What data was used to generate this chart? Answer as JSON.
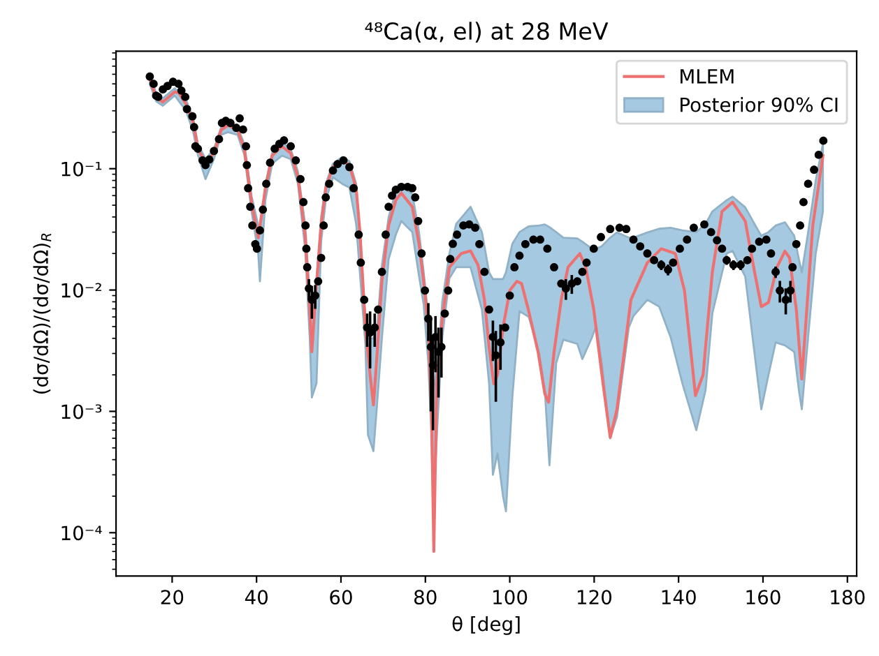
{
  "chart_data": {
    "type": "line",
    "title": "⁴⁸Ca(α, el) at 28 MeV",
    "xlabel": "θ [deg]",
    "ylabel": "(dσ/dΩ)/(dσ/dΩ)$_{R}$",
    "log": "y",
    "xlim": [
      6.7,
      182.2
    ],
    "xticks": [
      20,
      40,
      60,
      80,
      100,
      120,
      140,
      160,
      180
    ],
    "ylim": [
      4.4e-05,
      0.93
    ],
    "yticks": [
      {
        "value": 0.0001,
        "label": "10⁻⁴"
      },
      {
        "value": 0.001,
        "label": "10⁻³"
      },
      {
        "value": 0.01,
        "label": "10⁻²"
      },
      {
        "value": 0.1,
        "label": "10⁻¹"
      }
    ],
    "legend": "top right",
    "series": [
      {
        "name": "MLEM",
        "color": "#ee7171",
        "line_style": "solid",
        "x": [
          14.7,
          16.2,
          17.8,
          20.6,
          21.6,
          23.3,
          25.0,
          26.1,
          27.9,
          29.9,
          31.6,
          33.2,
          35.5,
          37.1,
          38.8,
          40.4,
          42.1,
          43.7,
          46.0,
          48.1,
          49.8,
          51.5,
          52.6,
          53.1,
          54.0,
          55.3,
          56.4,
          58.1,
          60.3,
          62.0,
          63.6,
          64.5,
          65.8,
          66.9,
          67.7,
          68.6,
          69.7,
          71.3,
          73.0,
          74.3,
          76.9,
          78.5,
          79.6,
          80.7,
          81.5,
          82.0,
          82.7,
          84.0,
          85.7,
          88.5,
          90.7,
          92.5,
          94.0,
          95.1,
          96.2,
          97.1,
          98.4,
          100.0,
          101.7,
          102.8,
          104.4,
          106.7,
          108.3,
          109.2,
          110.5,
          112.2,
          113.8,
          116.6,
          118.0,
          119.9,
          122.1,
          123.8,
          125.4,
          128.7,
          132.6,
          135.9,
          139.2,
          141.4,
          144.0,
          145.8,
          148.0,
          150.3,
          152.8,
          155.8,
          158.0,
          159.6,
          161.3,
          163.3,
          165.2,
          166.3,
          167.9,
          169.2,
          171.8,
          174.2
        ],
        "values": [
          0.55,
          0.386,
          0.354,
          0.43,
          0.42,
          0.34,
          0.238,
          0.146,
          0.112,
          0.134,
          0.208,
          0.228,
          0.208,
          0.146,
          0.053,
          0.027,
          0.069,
          0.128,
          0.153,
          0.134,
          0.086,
          0.0286,
          0.0069,
          0.0031,
          0.009,
          0.034,
          0.069,
          0.103,
          0.117,
          0.107,
          0.069,
          0.03,
          0.0049,
          0.002,
          0.00113,
          0.0031,
          0.0118,
          0.034,
          0.055,
          0.063,
          0.0485,
          0.024,
          0.0118,
          0.0049,
          0.00084,
          7e-05,
          0.0017,
          0.0058,
          0.0154,
          0.02,
          0.021,
          0.016,
          0.0083,
          0.0034,
          0.00169,
          0.002,
          0.0049,
          0.0099,
          0.0118,
          0.0113,
          0.0069,
          0.0031,
          0.0014,
          0.00119,
          0.0031,
          0.0083,
          0.0154,
          0.02,
          0.0154,
          0.0069,
          0.00169,
          0.00061,
          0.00104,
          0.0083,
          0.0168,
          0.0219,
          0.02,
          0.0099,
          0.00135,
          0.002,
          0.0141,
          0.0444,
          0.053,
          0.037,
          0.0141,
          0.0073,
          0.0079,
          0.0154,
          0.0209,
          0.0184,
          0.0069,
          0.00185,
          0.034,
          0.128
        ]
      },
      {
        "name": "Posterior 90% CI",
        "type": "area",
        "color": "#a5c9e1",
        "x": [
          14.7,
          16.2,
          17.8,
          20.6,
          23.3,
          25.0,
          26.1,
          27.9,
          29.9,
          31.6,
          33.2,
          35.5,
          37.1,
          38.8,
          40.4,
          40.8,
          42.1,
          43.7,
          46.0,
          48.1,
          49.8,
          51.5,
          52.6,
          53.1,
          54.2,
          55.3,
          56.4,
          58.1,
          60.3,
          62.0,
          63.6,
          65.8,
          66.4,
          67.7,
          68.6,
          69.7,
          71.3,
          73.0,
          74.3,
          76.9,
          78.5,
          79.6,
          80.7,
          81.3,
          81.9,
          82.9,
          84.0,
          85.7,
          87.3,
          90.7,
          93.4,
          95.1,
          96.0,
          97.1,
          98.4,
          99.1,
          100.6,
          102.3,
          104.5,
          107.0,
          108.3,
          109.4,
          111.0,
          112.7,
          116.0,
          117.2,
          119.4,
          120.5,
          121.8,
          123.8,
          125.4,
          128.2,
          129.3,
          132.6,
          135.4,
          138.1,
          140.9,
          144.2,
          146.4,
          148.0,
          151.4,
          152.8,
          155.8,
          158.0,
          159.6,
          161.3,
          163.0,
          165.2,
          167.4,
          168.5,
          169.2,
          170.7,
          172.5,
          174.2
        ],
        "values": [
          null,
          null,
          null,
          null,
          null,
          null,
          null,
          null,
          null,
          null,
          null,
          null,
          null,
          null,
          null,
          null,
          null,
          null,
          null,
          null,
          null,
          null,
          null,
          null,
          null,
          null,
          null,
          null,
          null,
          null,
          null,
          null,
          null,
          null,
          null,
          null,
          null,
          null,
          null,
          null,
          null,
          null,
          null,
          null,
          null,
          null,
          null,
          null,
          null,
          null,
          null,
          null,
          null,
          null,
          null,
          null,
          null,
          null,
          null,
          null,
          null,
          null,
          null,
          null,
          null,
          null,
          null,
          null,
          null,
          null,
          null,
          null,
          null,
          null,
          null,
          null,
          null,
          null,
          null,
          null,
          null,
          null,
          null,
          null,
          null,
          null,
          null,
          null,
          null,
          null,
          null,
          null,
          null,
          null
        ],
        "lower": [
          0.5,
          0.36,
          0.33,
          0.4,
          0.3,
          0.2,
          0.13,
          0.082,
          0.12,
          0.19,
          0.2,
          0.19,
          0.13,
          0.045,
          0.02,
          0.0118,
          0.055,
          0.11,
          0.128,
          0.12,
          0.075,
          0.022,
          0.004,
          0.0013,
          0.0017,
          0.025,
          0.055,
          0.085,
          0.075,
          0.07,
          0.035,
          0.0035,
          0.00064,
          0.00047,
          0.0012,
          0.004,
          0.018,
          0.0286,
          0.037,
          0.03,
          0.013,
          0.0076,
          0.0025,
          0.00084,
          0.000156,
          0.00084,
          0.0041,
          0.0125,
          0.0154,
          0.0154,
          0.0069,
          0.0017,
          0.0003,
          0.00045,
          0.0002,
          0.00015,
          0.0013,
          0.0067,
          0.006,
          0.003,
          0.0015,
          0.00036,
          0.0025,
          0.0039,
          0.0036,
          0.0027,
          0.004,
          0.0051,
          0.0025,
          0.0006,
          0.0009,
          0.0049,
          0.0061,
          0.0083,
          0.0073,
          0.0041,
          0.0017,
          0.0007,
          0.0015,
          0.0064,
          0.02,
          0.021,
          0.0129,
          0.003,
          0.00104,
          0.002,
          0.0037,
          0.0035,
          0.0031,
          0.0015,
          0.00104,
          0.0041,
          0.02,
          0.0444
        ],
        "upper": [
          0.6,
          0.42,
          0.38,
          0.46,
          0.37,
          0.26,
          0.16,
          0.12,
          0.145,
          0.22,
          0.245,
          0.22,
          0.16,
          0.06,
          0.034,
          0.03,
          0.075,
          0.135,
          0.165,
          0.145,
          0.095,
          0.035,
          0.009,
          0.006,
          0.012,
          0.04,
          0.075,
          0.11,
          0.125,
          0.115,
          0.075,
          0.006,
          0.004,
          0.004,
          0.005,
          0.016,
          0.04,
          0.065,
          0.071,
          0.062,
          0.03,
          0.014,
          0.006,
          0.0035,
          0.0015,
          0.0025,
          0.008,
          0.02,
          0.035,
          0.0485,
          0.03,
          0.014,
          0.0123,
          0.0123,
          0.0123,
          0.014,
          0.024,
          0.03,
          0.0335,
          0.034,
          0.0347,
          0.033,
          0.03,
          0.027,
          0.0266,
          0.025,
          0.022,
          0.0219,
          0.023,
          0.027,
          0.0298,
          0.027,
          0.027,
          0.0298,
          0.032,
          0.0326,
          0.031,
          0.03,
          0.035,
          0.0444,
          0.055,
          0.0588,
          0.048,
          0.035,
          0.028,
          0.03,
          0.034,
          0.0362,
          0.028,
          0.018,
          0.014,
          0.03,
          0.08,
          0.16
        ]
      },
      {
        "type": "scatter",
        "color": "#000000",
        "marker": "circle",
        "x": [
          14.7,
          15.6,
          16.2,
          16.7,
          17.8,
          18.9,
          20.2,
          21.5,
          22.2,
          23.1,
          23.5,
          24.8,
          25.2,
          25.5,
          26.1,
          27.2,
          27.9,
          28.8,
          29.9,
          31.1,
          31.8,
          32.7,
          33.8,
          35.2,
          36.0,
          36.8,
          37.5,
          37.7,
          38.0,
          38.5,
          39.0,
          39.7,
          40.1,
          40.8,
          41.5,
          42.3,
          43.2,
          44.3,
          45.4,
          46.5,
          48.1,
          49.3,
          50.4,
          51.1,
          51.6,
          51.8,
          52.0,
          52.4,
          53.1,
          53.9,
          54.6,
          55.3,
          55.9,
          56.4,
          57.2,
          58.1,
          59.2,
          60.6,
          62.0,
          63.0,
          64.2,
          64.7,
          65.5,
          66.2,
          66.9,
          68.0,
          68.8,
          69.7,
          70.6,
          71.3,
          72.1,
          73.0,
          74.3,
          75.8,
          76.9,
          77.6,
          78.3,
          79.1,
          79.9,
          80.7,
          81.3,
          81.8,
          82.4,
          83.1,
          83.8,
          84.6,
          85.4,
          85.9,
          86.5,
          87.5,
          89.0,
          90.4,
          91.8,
          92.8,
          94.0,
          95.1,
          96.0,
          96.7,
          97.8,
          98.9,
          100.0,
          101.1,
          102.3,
          103.7,
          105.6,
          107.2,
          108.9,
          110.5,
          112.2,
          113.3,
          114.7,
          116.0,
          117.2,
          118.2,
          119.9,
          121.6,
          123.8,
          126.0,
          127.6,
          129.3,
          130.9,
          132.6,
          134.2,
          135.9,
          137.5,
          138.7,
          140.3,
          142.0,
          143.6,
          146.1,
          147.7,
          149.1,
          150.3,
          151.4,
          153.0,
          154.7,
          156.3,
          157.4,
          159.1,
          160.8,
          161.9,
          163.0,
          164.0,
          165.4,
          166.5,
          167.0,
          167.9,
          168.8,
          169.6,
          170.7,
          172.1,
          173.2,
          174.3
        ],
        "values": [
          0.574,
          0.5,
          0.4,
          0.39,
          0.45,
          0.48,
          0.52,
          0.5,
          0.44,
          0.39,
          0.31,
          0.27,
          0.22,
          0.153,
          0.146,
          0.117,
          0.107,
          0.119,
          0.14,
          0.175,
          0.238,
          0.248,
          0.238,
          0.217,
          0.26,
          0.21,
          0.153,
          0.107,
          0.069,
          0.0485,
          0.034,
          0.0239,
          0.0219,
          0.031,
          0.046,
          0.075,
          0.112,
          0.146,
          0.16,
          0.171,
          0.153,
          0.117,
          0.082,
          0.053,
          0.034,
          0.0219,
          0.0154,
          0.0103,
          0.0083,
          0.009,
          0.0118,
          0.0184,
          0.034,
          0.058,
          0.075,
          0.0966,
          0.109,
          0.117,
          0.103,
          0.069,
          0.0286,
          0.0168,
          0.0083,
          0.0049,
          0.00446,
          0.0049,
          0.0069,
          0.0141,
          0.0286,
          0.0485,
          0.06,
          0.067,
          0.0708,
          0.0708,
          0.069,
          0.058,
          0.037,
          0.02,
          0.0099,
          0.0058,
          0.0034,
          0.0024,
          0.0041,
          0.0031,
          0.0034,
          0.0064,
          0.0099,
          0.018,
          0.024,
          0.0286,
          0.034,
          0.0347,
          0.0326,
          0.0239,
          0.0141,
          0.0069,
          0.0041,
          0.0029,
          0.0037,
          0.0049,
          0.009,
          0.0154,
          0.0192,
          0.0239,
          0.026,
          0.026,
          0.0219,
          0.0154,
          0.0113,
          0.0103,
          0.0113,
          0.0118,
          0.0141,
          0.0168,
          0.0219,
          0.0273,
          0.0318,
          0.0326,
          0.0318,
          0.026,
          0.0229,
          0.02,
          0.0176,
          0.0161,
          0.0147,
          0.0168,
          0.0219,
          0.026,
          0.0326,
          0.0347,
          0.03,
          0.0257,
          0.0219,
          0.0176,
          0.0161,
          0.0161,
          0.0176,
          0.0219,
          0.025,
          0.026,
          0.02,
          0.0141,
          0.0099,
          0.0083,
          0.0099,
          0.0154,
          0.0239,
          0.034,
          0.053,
          0.075,
          0.098,
          0.13,
          0.17
        ],
        "errors": [
          null,
          null,
          null,
          null,
          null,
          null,
          null,
          null,
          null,
          null,
          null,
          null,
          null,
          null,
          null,
          null,
          null,
          null,
          null,
          null,
          null,
          null,
          null,
          null,
          null,
          null,
          null,
          null,
          null,
          null,
          null,
          null,
          null,
          null,
          null,
          null,
          null,
          null,
          null,
          null,
          null,
          null,
          null,
          null,
          null,
          null,
          null,
          0.002,
          0.0025,
          0.002,
          null,
          null,
          null,
          null,
          null,
          null,
          null,
          null,
          null,
          null,
          null,
          null,
          null,
          0.0015,
          0.0022,
          0.0015,
          null,
          null,
          null,
          null,
          null,
          null,
          null,
          null,
          null,
          null,
          null,
          null,
          null,
          0.002,
          0.0024,
          0.0017,
          0.002,
          0.0018,
          0.0015,
          null,
          null,
          null,
          null,
          null,
          null,
          null,
          null,
          null,
          null,
          null,
          0.0015,
          0.0017,
          0.0015,
          null,
          null,
          null,
          null,
          null,
          null,
          null,
          null,
          null,
          null,
          0.002,
          0.002,
          null,
          null,
          null,
          null,
          null,
          null,
          null,
          null,
          null,
          null,
          null,
          null,
          0.0015,
          0.0015,
          null,
          null,
          null,
          null,
          null,
          null,
          null,
          null,
          0.0015,
          0.0015,
          0.0015,
          null,
          null,
          null,
          null,
          null,
          0.0015,
          0.002,
          0.002,
          0.002,
          null,
          null,
          null,
          null,
          null,
          null,
          null,
          null
        ]
      }
    ]
  }
}
